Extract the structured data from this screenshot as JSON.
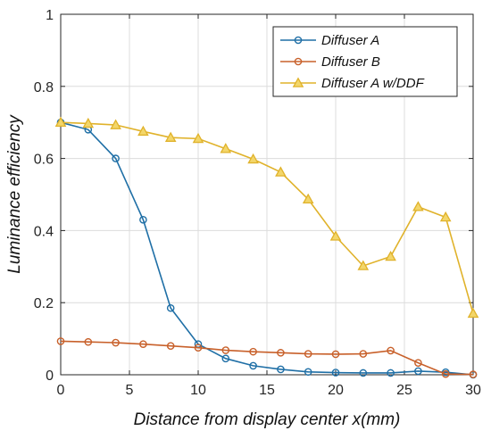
{
  "chart_data": {
    "type": "line",
    "xlabel": "Distance from display center x(mm)",
    "ylabel": "Luminance efficiency",
    "xlim": [
      0,
      30
    ],
    "ylim": [
      0,
      1
    ],
    "xticks": [
      0,
      5,
      10,
      15,
      20,
      25,
      30
    ],
    "yticks": [
      0,
      0.2,
      0.4,
      0.6,
      0.8,
      1
    ],
    "xtick_labels": [
      "0",
      "5",
      "10",
      "15",
      "20",
      "25",
      "30"
    ],
    "ytick_labels": [
      "0",
      "0.2",
      "0.4",
      "0.6",
      "0.8",
      "1"
    ],
    "grid": true,
    "legend_position": "top-right",
    "x": [
      0,
      2,
      4,
      6,
      8,
      10,
      12,
      14,
      16,
      18,
      20,
      22,
      24,
      26,
      28,
      30
    ],
    "series": [
      {
        "name": "Diffuser A",
        "color": "#1f6fa6",
        "marker": "circle",
        "values": [
          0.7,
          0.68,
          0.6,
          0.43,
          0.185,
          0.085,
          0.045,
          0.025,
          0.015,
          0.008,
          0.006,
          0.005,
          0.005,
          0.01,
          0.007,
          0.0
        ]
      },
      {
        "name": "Diffuser B",
        "color": "#c8602a",
        "marker": "circle",
        "values": [
          0.093,
          0.091,
          0.089,
          0.085,
          0.08,
          0.075,
          0.068,
          0.064,
          0.061,
          0.058,
          0.057,
          0.058,
          0.067,
          0.033,
          0.002,
          0.001
        ]
      },
      {
        "name": "Diffuser A w/DDF",
        "color": "#e0b22a",
        "marker": "triangle",
        "values": [
          0.7,
          0.697,
          0.693,
          0.675,
          0.658,
          0.655,
          0.627,
          0.598,
          0.562,
          0.487,
          0.384,
          0.302,
          0.328,
          0.466,
          0.437,
          0.17
        ]
      }
    ]
  }
}
